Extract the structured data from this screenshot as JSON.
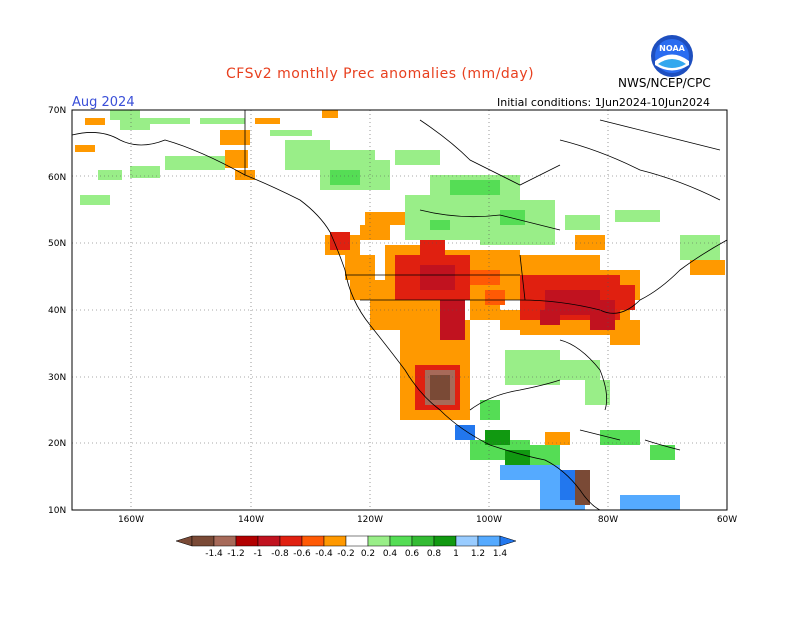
{
  "title": "CFSv2 monthly Prec anomalies (mm/day)",
  "month": "Aug 2024",
  "initial_conditions": "Initial conditions: 1Jun2024-10Jun2024",
  "agency": "NWS/NCEP/CPC",
  "logo": {
    "text": "NOAA"
  },
  "map": {
    "region": "North America",
    "lon_range": [
      170,
      60
    ],
    "lat_range": [
      10,
      70
    ],
    "lat_labels": [
      "70N",
      "60N",
      "50N",
      "40N",
      "30N",
      "20N",
      "10N"
    ],
    "lon_labels": [
      "160W",
      "140W",
      "120W",
      "100W",
      "80W",
      "60W"
    ],
    "grid": "dotted",
    "anomaly_regions": [
      {
        "area": "Pacific Northwest",
        "level": -0.6
      },
      {
        "area": "Northern Rockies / Great Basin",
        "level": -0.4
      },
      {
        "area": "Central Plains",
        "level": -0.4
      },
      {
        "area": "Midwest / Ohio Valley",
        "level": -0.8
      },
      {
        "area": "Mid-Atlantic",
        "level": -0.8
      },
      {
        "area": "Southwest / Four Corners",
        "level": -0.8
      },
      {
        "area": "Northwest Mexico",
        "level": -1.4
      },
      {
        "area": "Canadian Prairies",
        "level": 0.4
      },
      {
        "area": "Hudson Bay region",
        "level": 0.6
      },
      {
        "area": "Southeast US / Florida",
        "level": 0.4
      },
      {
        "area": "Southern Mexico",
        "level": 0.8
      },
      {
        "area": "Central America / Caribbean",
        "level": 1.2
      }
    ]
  },
  "colorbar": {
    "labels": [
      "-1.4",
      "-1.2",
      "-1",
      "-0.8",
      "-0.6",
      "-0.4",
      "-0.2",
      "0.2",
      "0.4",
      "0.6",
      "0.8",
      "1",
      "1.2",
      "1.4"
    ],
    "colors": [
      "#7a4a36",
      "#a76a59",
      "#b20000",
      "#c1121f",
      "#e02010",
      "#ff5a05",
      "#ff9900",
      "#ffffff",
      "#99ee88",
      "#55dd55",
      "#33bb33",
      "#119911",
      "#99ccff",
      "#55aaff",
      "#2277ee"
    ]
  }
}
